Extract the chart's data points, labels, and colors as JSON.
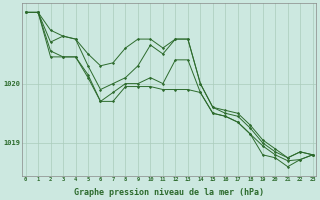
{
  "background_color": "#cce8e0",
  "grid_color": "#aaccbb",
  "line_color": "#2d6b2d",
  "marker_color": "#2d6b2d",
  "xlabel": "Graphe pression niveau de la mer (hPa)",
  "xlabel_fontsize": 6,
  "xticks": [
    0,
    1,
    2,
    3,
    4,
    5,
    6,
    7,
    8,
    9,
    10,
    11,
    12,
    13,
    14,
    15,
    16,
    17,
    18,
    19,
    20,
    21,
    22,
    23
  ],
  "ylim": [
    1018.45,
    1021.35
  ],
  "yticks": [
    1019,
    1020
  ],
  "series": [
    [
      1021.2,
      1021.2,
      1020.9,
      1020.8,
      1020.75,
      1020.5,
      1020.3,
      1020.35,
      1020.6,
      1020.75,
      1020.75,
      1020.6,
      1020.75,
      1020.75,
      1020.0,
      1019.6,
      1019.55,
      1019.5,
      1019.3,
      1019.05,
      1018.9,
      1018.75,
      1018.85,
      1018.8
    ],
    [
      1021.2,
      1021.2,
      1020.7,
      1020.8,
      1020.75,
      1020.3,
      1019.9,
      1020.0,
      1020.1,
      1020.3,
      1020.65,
      1020.5,
      1020.75,
      1020.75,
      1020.0,
      1019.6,
      1019.5,
      1019.45,
      1019.25,
      1019.0,
      1018.85,
      1018.75,
      1018.85,
      1018.8
    ],
    [
      1021.2,
      1021.2,
      1020.55,
      1020.45,
      1020.45,
      1020.1,
      1019.7,
      1019.85,
      1020.0,
      1020.0,
      1020.1,
      1020.0,
      1020.4,
      1020.4,
      1019.85,
      1019.5,
      1019.45,
      1019.35,
      1019.15,
      1018.8,
      1018.75,
      1018.6,
      1018.72,
      1018.8
    ],
    [
      1021.2,
      1021.2,
      1020.45,
      1020.45,
      1020.45,
      1020.15,
      1019.7,
      1019.7,
      1019.95,
      1019.95,
      1019.95,
      1019.9,
      1019.9,
      1019.9,
      1019.85,
      1019.5,
      1019.45,
      1019.35,
      1019.15,
      1018.95,
      1018.8,
      1018.7,
      1018.72,
      1018.8
    ]
  ]
}
